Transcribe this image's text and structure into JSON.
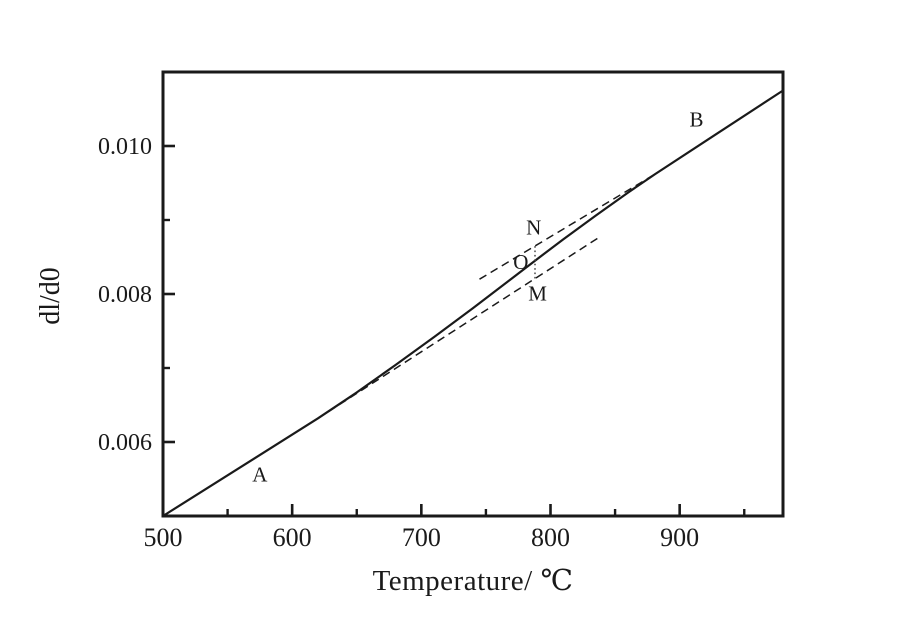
{
  "figure": {
    "background_color": "#ffffff",
    "ink_color": "#1a1a1a",
    "dotted_marker_color": "#4a4a4a"
  },
  "chart_data": {
    "type": "line",
    "title": "",
    "xlabel": "Temperature/ ℃",
    "ylabel": "dl/d0",
    "xlim": [
      500,
      980
    ],
    "ylim": [
      0.005,
      0.011
    ],
    "grid": false,
    "legend_position": "none",
    "tick_direction": "in",
    "x_ticks_major": [
      500,
      600,
      700,
      800,
      900
    ],
    "x_tick_labels": [
      "500",
      "600",
      "700",
      "800",
      "900"
    ],
    "x_ticks_minor": [
      550,
      650,
      750,
      850,
      950
    ],
    "y_ticks_major": [
      0.006,
      0.008,
      0.01
    ],
    "y_tick_labels": [
      "0.006",
      "0.008",
      "0.010"
    ],
    "y_ticks_minor": [
      0.007,
      0.009
    ],
    "series": [
      {
        "name": "dilation-curve",
        "style": "solid",
        "points": [
          [
            500,
            0.005
          ],
          [
            560,
            0.00566
          ],
          [
            620,
            0.00632
          ],
          [
            650,
            0.00667
          ],
          [
            680,
            0.00704
          ],
          [
            710,
            0.00742
          ],
          [
            740,
            0.00781
          ],
          [
            770,
            0.00821
          ],
          [
            788,
            0.00845
          ],
          [
            810,
            0.00874
          ],
          [
            835,
            0.00906
          ],
          [
            860,
            0.00937
          ],
          [
            881,
            0.00962
          ],
          [
            930,
            0.01018
          ],
          [
            980,
            0.01075
          ]
        ]
      },
      {
        "name": "tangent-low-segment-extension",
        "style": "dashed",
        "points": [
          [
            628,
            0.00641
          ],
          [
            838,
            0.00877
          ]
        ]
      },
      {
        "name": "tangent-high-segment-extension",
        "style": "dashed",
        "points": [
          [
            745,
            0.0082
          ],
          [
            881,
            0.00962
          ]
        ]
      },
      {
        "name": "transition-interval-marker",
        "style": "dotted",
        "points": [
          [
            788,
            0.00821
          ],
          [
            788,
            0.00865
          ]
        ]
      }
    ],
    "annotations": [
      {
        "text": "A",
        "x": 575,
        "y": 0.00556
      },
      {
        "text": "B",
        "x": 913,
        "y": 0.01036
      },
      {
        "text": "N",
        "x": 787,
        "y": 0.0089
      },
      {
        "text": "O",
        "x": 777,
        "y": 0.00843
      },
      {
        "text": "M",
        "x": 790,
        "y": 0.00801
      }
    ]
  }
}
